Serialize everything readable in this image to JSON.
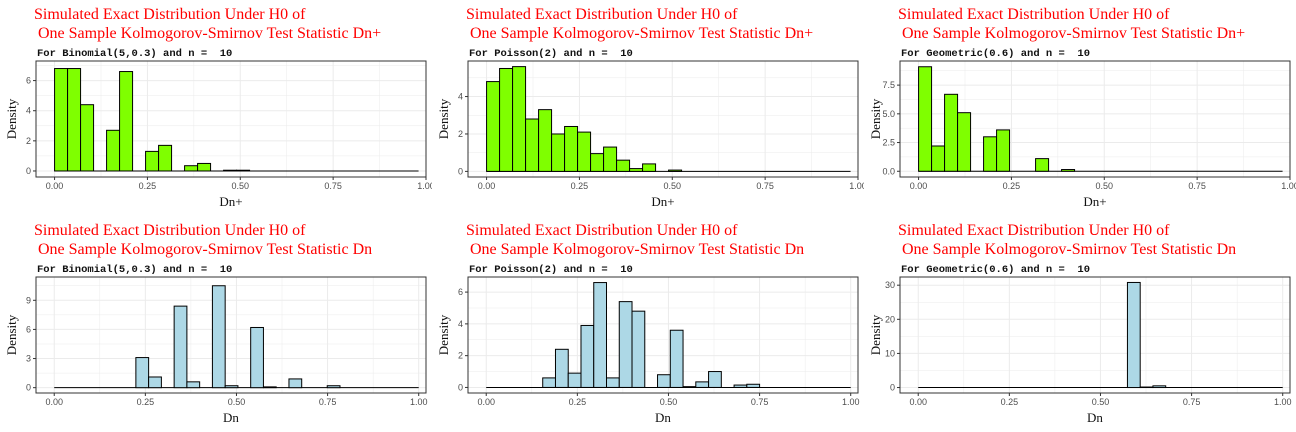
{
  "style": {
    "title_color": "#ff0000",
    "fill_top": "#7fff00",
    "fill_bottom": "#add8e6",
    "bar_stroke": "#000000",
    "grid_color": "#ebebeb"
  },
  "chart_data": [
    {
      "type": "bar",
      "title": "Simulated Exact Distribution Under H0 of",
      "title2": " One Sample Kolmogorov-Smirnov Test Statistic Dn+",
      "subtitle": "For Binomial(5,0.3) and n =  10",
      "xlabel": "Dn+",
      "ylabel": "Density",
      "fill": "#7fff00",
      "xlim": [
        -0.05,
        1.0
      ],
      "ylim": [
        -0.4,
        7.3
      ],
      "xticks": [
        0.0,
        0.25,
        0.5,
        0.75,
        1.0
      ],
      "xtick_labels": [
        "0.00",
        "0.25",
        "0.50",
        "0.75",
        "1.00"
      ],
      "yticks": [
        0,
        2,
        4,
        6
      ],
      "ytick_labels": [
        "0",
        "2",
        "4",
        "6"
      ],
      "baseline": [
        0,
        0.98
      ],
      "bin_width": 0.035,
      "bins": [
        {
          "x": 0.0175,
          "y": 6.8
        },
        {
          "x": 0.0525,
          "y": 6.8
        },
        {
          "x": 0.0875,
          "y": 4.4
        },
        {
          "x": 0.1575,
          "y": 2.7
        },
        {
          "x": 0.1925,
          "y": 6.6
        },
        {
          "x": 0.2625,
          "y": 1.3
        },
        {
          "x": 0.2975,
          "y": 1.7
        },
        {
          "x": 0.3675,
          "y": 0.35
        },
        {
          "x": 0.4025,
          "y": 0.5
        },
        {
          "x": 0.4725,
          "y": 0.05
        },
        {
          "x": 0.5075,
          "y": 0.05
        }
      ]
    },
    {
      "type": "bar",
      "title": "Simulated Exact Distribution Under H0 of",
      "title2": " One Sample Kolmogorov-Smirnov Test Statistic Dn+",
      "subtitle": "For Poisson(2) and n =  10",
      "xlabel": "Dn+",
      "ylabel": "Density",
      "fill": "#7fff00",
      "xlim": [
        -0.05,
        1.0
      ],
      "ylim": [
        -0.3,
        5.9
      ],
      "xticks": [
        0.0,
        0.25,
        0.5,
        0.75,
        1.0
      ],
      "xtick_labels": [
        "0.00",
        "0.25",
        "0.50",
        "0.75",
        "1.00"
      ],
      "yticks": [
        0,
        2,
        4
      ],
      "ytick_labels": [
        "0",
        "2",
        "4"
      ],
      "baseline": [
        0,
        0.98
      ],
      "bin_width": 0.035,
      "bins": [
        {
          "x": 0.0175,
          "y": 4.8
        },
        {
          "x": 0.0525,
          "y": 5.5
        },
        {
          "x": 0.0875,
          "y": 5.6
        },
        {
          "x": 0.1225,
          "y": 2.8
        },
        {
          "x": 0.1575,
          "y": 3.3
        },
        {
          "x": 0.1925,
          "y": 2.0
        },
        {
          "x": 0.2275,
          "y": 2.4
        },
        {
          "x": 0.2625,
          "y": 2.1
        },
        {
          "x": 0.2975,
          "y": 0.95
        },
        {
          "x": 0.3325,
          "y": 1.3
        },
        {
          "x": 0.3675,
          "y": 0.6
        },
        {
          "x": 0.4025,
          "y": 0.15
        },
        {
          "x": 0.4375,
          "y": 0.4
        },
        {
          "x": 0.5075,
          "y": 0.07
        }
      ]
    },
    {
      "type": "bar",
      "title": "Simulated Exact Distribution Under H0 of",
      "title2": " One Sample Kolmogorov-Smirnov Test Statistic Dn+",
      "subtitle": "For Geometric(0.6) and n =  10",
      "xlabel": "Dn+",
      "ylabel": "Density",
      "fill": "#7fff00",
      "xlim": [
        -0.05,
        1.0
      ],
      "ylim": [
        -0.5,
        9.6
      ],
      "xticks": [
        0.0,
        0.25,
        0.5,
        0.75,
        1.0
      ],
      "xtick_labels": [
        "0.00",
        "0.25",
        "0.50",
        "0.75",
        "1.00"
      ],
      "yticks": [
        0,
        2.5,
        5.0,
        7.5
      ],
      "ytick_labels": [
        "0.0",
        "2.5",
        "5.0",
        "7.5"
      ],
      "baseline": [
        0,
        0.98
      ],
      "bin_width": 0.035,
      "bins": [
        {
          "x": 0.0175,
          "y": 9.1
        },
        {
          "x": 0.0525,
          "y": 2.2
        },
        {
          "x": 0.0875,
          "y": 6.7
        },
        {
          "x": 0.1225,
          "y": 5.1
        },
        {
          "x": 0.1925,
          "y": 3.0
        },
        {
          "x": 0.2275,
          "y": 3.6
        },
        {
          "x": 0.3325,
          "y": 1.1
        },
        {
          "x": 0.4025,
          "y": 0.15
        }
      ]
    },
    {
      "type": "bar",
      "title": "Simulated Exact Distribution Under H0 of",
      "title2": " One Sample Kolmogorov-Smirnov Test Statistic Dn",
      "subtitle": "For Binomial(5,0.3) and n =  10",
      "xlabel": "Dn",
      "ylabel": "Density",
      "fill": "#add8e6",
      "xlim": [
        -0.05,
        1.02
      ],
      "ylim": [
        -0.55,
        11.4
      ],
      "xticks": [
        0.0,
        0.25,
        0.5,
        0.75,
        1.0
      ],
      "xtick_labels": [
        "0.00",
        "0.25",
        "0.50",
        "0.75",
        "1.00"
      ],
      "yticks": [
        0,
        3,
        6,
        9
      ],
      "ytick_labels": [
        "0",
        "3",
        "6",
        "9"
      ],
      "baseline": [
        0,
        1.0
      ],
      "bin_width": 0.035,
      "bins": [
        {
          "x": 0.2415,
          "y": 3.1
        },
        {
          "x": 0.2765,
          "y": 1.1
        },
        {
          "x": 0.3465,
          "y": 8.4
        },
        {
          "x": 0.3815,
          "y": 0.6
        },
        {
          "x": 0.4515,
          "y": 10.5
        },
        {
          "x": 0.4865,
          "y": 0.2
        },
        {
          "x": 0.5565,
          "y": 6.2
        },
        {
          "x": 0.5915,
          "y": 0.08
        },
        {
          "x": 0.6615,
          "y": 0.9
        },
        {
          "x": 0.7665,
          "y": 0.2
        }
      ]
    },
    {
      "type": "bar",
      "title": "Simulated Exact Distribution Under H0 of",
      "title2": " One Sample Kolmogorov-Smirnov Test Statistic Dn",
      "subtitle": "For Poisson(2) and n =  10",
      "xlabel": "Dn",
      "ylabel": "Density",
      "fill": "#add8e6",
      "xlim": [
        -0.05,
        1.02
      ],
      "ylim": [
        -0.35,
        6.95
      ],
      "xticks": [
        0.0,
        0.25,
        0.5,
        0.75,
        1.0
      ],
      "xtick_labels": [
        "0.00",
        "0.25",
        "0.50",
        "0.75",
        "1.00"
      ],
      "yticks": [
        0,
        2,
        4,
        6
      ],
      "ytick_labels": [
        "0",
        "2",
        "4",
        "6"
      ],
      "baseline": [
        0,
        1.0
      ],
      "bin_width": 0.035,
      "bins": [
        {
          "x": 0.1725,
          "y": 0.6
        },
        {
          "x": 0.2075,
          "y": 2.4
        },
        {
          "x": 0.2425,
          "y": 0.9
        },
        {
          "x": 0.2775,
          "y": 3.9
        },
        {
          "x": 0.3125,
          "y": 6.6
        },
        {
          "x": 0.3475,
          "y": 0.6
        },
        {
          "x": 0.3825,
          "y": 5.4
        },
        {
          "x": 0.4175,
          "y": 4.8
        },
        {
          "x": 0.4875,
          "y": 0.8
        },
        {
          "x": 0.5225,
          "y": 3.6
        },
        {
          "x": 0.5575,
          "y": 0.05
        },
        {
          "x": 0.5925,
          "y": 0.35
        },
        {
          "x": 0.6275,
          "y": 1.0
        },
        {
          "x": 0.6975,
          "y": 0.15
        },
        {
          "x": 0.7325,
          "y": 0.2
        }
      ]
    },
    {
      "type": "bar",
      "title": "Simulated Exact Distribution Under H0 of",
      "title2": " One Sample Kolmogorov-Smirnov Test Statistic Dn",
      "subtitle": "For Geometric(0.6) and n =  10",
      "xlabel": "Dn",
      "ylabel": "Density",
      "fill": "#add8e6",
      "xlim": [
        -0.05,
        1.02
      ],
      "ylim": [
        -1.6,
        32.4
      ],
      "xticks": [
        0.0,
        0.25,
        0.5,
        0.75,
        1.0
      ],
      "xtick_labels": [
        "0.00",
        "0.25",
        "0.50",
        "0.75",
        "1.00"
      ],
      "yticks": [
        0,
        10,
        20,
        30
      ],
      "ytick_labels": [
        "0",
        "10",
        "20",
        "30"
      ],
      "baseline": [
        0,
        1.0
      ],
      "bin_width": 0.035,
      "bins": [
        {
          "x": 0.5915,
          "y": 30.8
        },
        {
          "x": 0.6265,
          "y": 0.15
        },
        {
          "x": 0.6615,
          "y": 0.5
        }
      ]
    }
  ]
}
